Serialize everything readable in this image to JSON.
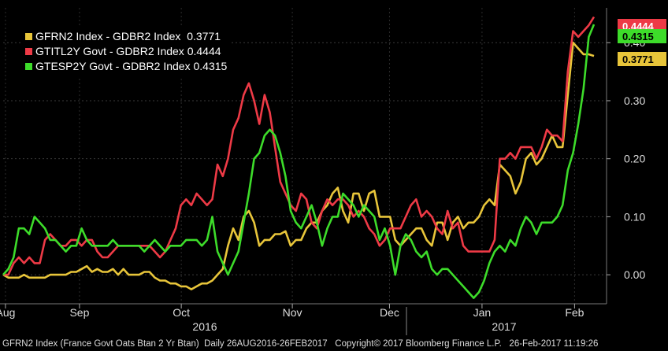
{
  "chart_data": {
    "type": "line",
    "ylim": [
      -0.05,
      0.46
    ],
    "yticks": [
      "0.00",
      "0.10",
      "0.20",
      "0.30",
      "0.40"
    ],
    "ytick_values": [
      0.0,
      0.1,
      0.2,
      0.3,
      0.4
    ],
    "xticks": [
      "Aug",
      "Sep",
      "Oct",
      "Nov",
      "Dec",
      "Jan",
      "Feb"
    ],
    "years": [
      "2016",
      "2017"
    ],
    "grid": true,
    "legend_position": "top-left",
    "series": [
      {
        "name": "GFRN2 Index - GDBR2 Index",
        "last": "0.3771",
        "color": "#e8c53a",
        "values": [
          0.0,
          -0.005,
          -0.005,
          -0.005,
          0.0,
          -0.005,
          -0.005,
          -0.005,
          -0.005,
          0.0,
          0.0,
          0.0,
          0.0,
          0.005,
          0.005,
          0.01,
          0.015,
          0.005,
          0.01,
          0.005,
          0.005,
          0.01,
          0.0,
          0.01,
          0.0,
          0.0,
          0.0,
          0.005,
          0.005,
          -0.005,
          -0.01,
          -0.01,
          -0.015,
          -0.015,
          -0.02,
          -0.02,
          -0.025,
          -0.02,
          -0.015,
          -0.015,
          -0.01,
          0.0,
          0.01,
          0.05,
          0.08,
          0.06,
          0.1,
          0.11,
          0.09,
          0.05,
          0.06,
          0.06,
          0.07,
          0.07,
          0.075,
          0.05,
          0.06,
          0.06,
          0.08,
          0.09,
          0.09,
          0.11,
          0.12,
          0.14,
          0.15,
          0.11,
          0.09,
          0.14,
          0.14,
          0.11,
          0.14,
          0.145,
          0.1,
          0.1,
          0.1,
          0.06,
          0.05,
          0.06,
          0.07,
          0.08,
          0.08,
          0.06,
          0.05,
          0.09,
          0.09,
          0.06,
          0.09,
          0.1,
          0.08,
          0.09,
          0.09,
          0.1,
          0.12,
          0.13,
          0.12,
          0.19,
          0.18,
          0.17,
          0.14,
          0.16,
          0.2,
          0.21,
          0.19,
          0.2,
          0.22,
          0.24,
          0.22,
          0.22,
          0.31,
          0.4,
          0.39,
          0.38,
          0.38,
          0.3771
        ]
      },
      {
        "name": "GTITL2Y Govt - GDBR2 Index",
        "last": "0.4444",
        "color": "#ee3a46",
        "values": [
          0.0,
          0.0,
          0.02,
          0.03,
          0.02,
          0.03,
          0.02,
          0.02,
          0.06,
          0.07,
          0.06,
          0.05,
          0.05,
          0.06,
          0.06,
          0.05,
          0.06,
          0.06,
          0.04,
          0.03,
          0.03,
          0.04,
          0.05,
          0.05,
          0.05,
          0.05,
          0.05,
          0.05,
          0.05,
          0.04,
          0.03,
          0.04,
          0.06,
          0.08,
          0.12,
          0.13,
          0.12,
          0.14,
          0.13,
          0.12,
          0.13,
          0.19,
          0.17,
          0.2,
          0.25,
          0.27,
          0.31,
          0.33,
          0.3,
          0.26,
          0.31,
          0.28,
          0.22,
          0.16,
          0.14,
          0.12,
          0.11,
          0.14,
          0.13,
          0.09,
          0.08,
          0.11,
          0.13,
          0.12,
          0.13,
          0.13,
          0.12,
          0.1,
          0.11,
          0.1,
          0.08,
          0.07,
          0.05,
          0.06,
          0.08,
          0.08,
          0.08,
          0.1,
          0.12,
          0.13,
          0.1,
          0.11,
          0.1,
          0.08,
          0.07,
          0.11,
          0.08,
          0.09,
          0.05,
          0.04,
          0.04,
          0.04,
          0.04,
          0.04,
          0.06,
          0.2,
          0.2,
          0.21,
          0.2,
          0.22,
          0.22,
          0.22,
          0.2,
          0.22,
          0.25,
          0.24,
          0.24,
          0.23,
          0.35,
          0.42,
          0.41,
          0.42,
          0.43,
          0.4444
        ]
      },
      {
        "name": "GTESP2Y Govt - GDBR2 Index",
        "last": "0.4315",
        "color": "#3ddc2a",
        "values": [
          0.0,
          0.01,
          0.03,
          0.08,
          0.08,
          0.07,
          0.1,
          0.09,
          0.08,
          0.06,
          0.06,
          0.05,
          0.04,
          0.05,
          0.05,
          0.08,
          0.06,
          0.05,
          0.05,
          0.05,
          0.05,
          0.06,
          0.05,
          0.05,
          0.05,
          0.05,
          0.05,
          0.04,
          0.05,
          0.06,
          0.05,
          0.04,
          0.05,
          0.05,
          0.05,
          0.06,
          0.06,
          0.06,
          0.05,
          0.06,
          0.1,
          0.04,
          0.02,
          0.0,
          0.02,
          0.04,
          0.09,
          0.14,
          0.2,
          0.21,
          0.24,
          0.25,
          0.24,
          0.21,
          0.17,
          0.11,
          0.09,
          0.08,
          0.1,
          0.12,
          0.09,
          0.05,
          0.08,
          0.1,
          0.1,
          0.14,
          0.13,
          0.12,
          0.1,
          0.12,
          0.11,
          0.1,
          0.06,
          0.08,
          0.05,
          0.0,
          0.05,
          0.07,
          0.06,
          0.04,
          0.03,
          0.04,
          0.01,
          0.0,
          0.01,
          0.01,
          0.0,
          -0.01,
          -0.02,
          -0.03,
          -0.04,
          -0.03,
          -0.01,
          0.02,
          0.04,
          0.05,
          0.04,
          0.06,
          0.05,
          0.08,
          0.1,
          0.09,
          0.07,
          0.09,
          0.09,
          0.09,
          0.1,
          0.12,
          0.18,
          0.21,
          0.26,
          0.32,
          0.41,
          0.4315
        ]
      }
    ]
  },
  "footer": "GFRN2 Index (France Govt Oats Btan 2 Yr Btan)  Daily 26AUG2016-26FEB2017   Copyright© 2017 Bloomberg Finance L.P.   26-Feb-2017 11:19:26"
}
